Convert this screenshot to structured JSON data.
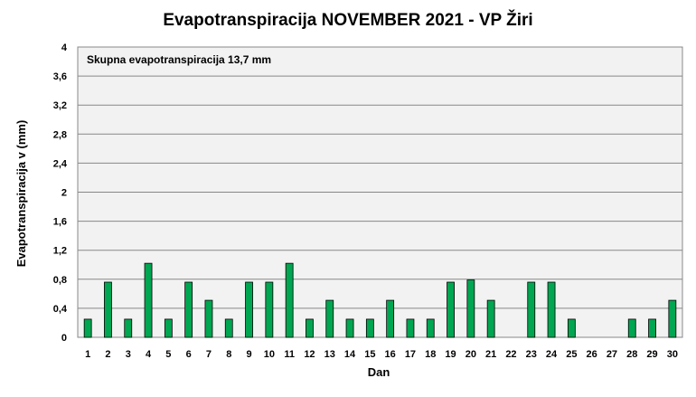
{
  "chart_data": {
    "type": "bar",
    "title": "Evapotranspiracija  NOVEMBER 2021 - VP Žiri",
    "xlabel": "Dan",
    "ylabel": "Evapotranspiracija v  (mm)",
    "annotation": "Skupna evapotranspiracija  13,7 mm",
    "ylim": [
      0,
      4
    ],
    "yticks": [
      "0",
      "0,4",
      "0,8",
      "1,2",
      "1,6",
      "2",
      "2,4",
      "2,8",
      "3,2",
      "3,6",
      "4"
    ],
    "categories": [
      "1",
      "2",
      "3",
      "4",
      "5",
      "6",
      "7",
      "8",
      "9",
      "10",
      "11",
      "12",
      "13",
      "14",
      "15",
      "16",
      "17",
      "18",
      "19",
      "20",
      "21",
      "22",
      "23",
      "24",
      "25",
      "26",
      "27",
      "28",
      "29",
      "30"
    ],
    "values": [
      0.25,
      0.76,
      0.25,
      1.02,
      0.25,
      0.76,
      0.51,
      0.25,
      0.76,
      0.76,
      1.02,
      0.25,
      0.51,
      0.25,
      0.25,
      0.51,
      0.25,
      0.25,
      0.76,
      0.79,
      0.51,
      0,
      0.76,
      0.76,
      0.25,
      0,
      0,
      0.25,
      0.25,
      0.51
    ],
    "grid": true,
    "colors": {
      "bar_fill": "#00a651",
      "bar_stroke": "#000000",
      "plot_bg": "#f2f2f2",
      "grid": "#888888"
    }
  }
}
